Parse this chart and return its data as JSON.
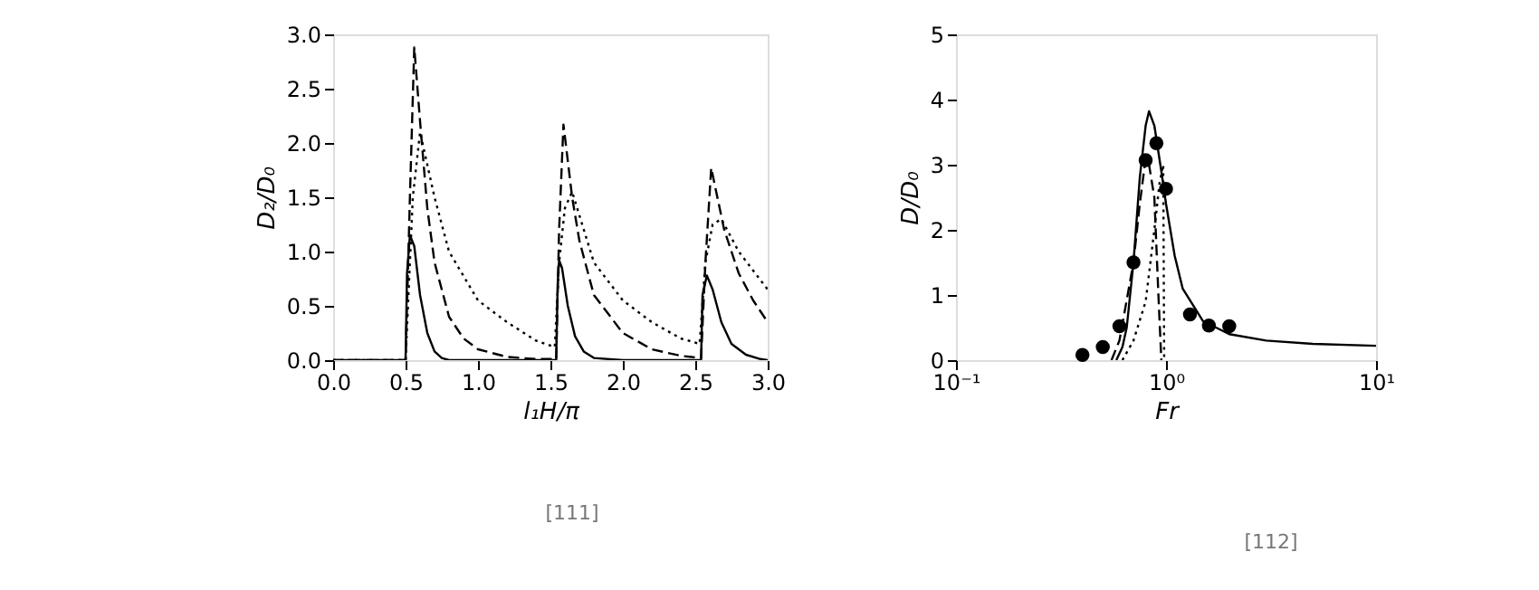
{
  "chart_data": [
    {
      "type": "line",
      "xlabel": "l₁H/π",
      "ylabel": "D₂/D₀",
      "xlim": [
        0,
        3
      ],
      "ylim": [
        0,
        3
      ],
      "xticks": [
        {
          "value": 0,
          "label": "0.0"
        },
        0.5,
        {
          "value": 1,
          "label": "1.0"
        },
        1.5,
        {
          "value": 2,
          "label": "2.0"
        },
        2.5,
        {
          "value": 3,
          "label": "3.0"
        }
      ],
      "yticks": [
        {
          "value": 0,
          "label": "0.0"
        },
        0.5,
        {
          "value": 1,
          "label": "1.0"
        },
        1.5,
        {
          "value": 2,
          "label": "2.0"
        },
        2.5,
        {
          "value": 3,
          "label": "3.0"
        }
      ],
      "grid": false,
      "legend": false,
      "annotations": [
        "[111]"
      ],
      "series": [
        {
          "color": "#000000",
          "line_style": "solid",
          "x": [
            0,
            0.5,
            0.51,
            0.53,
            0.56,
            0.6,
            0.65,
            0.7,
            0.75,
            0.8,
            1.0,
            1.3,
            1.54,
            1.55,
            1.56,
            1.58,
            1.62,
            1.67,
            1.73,
            1.8,
            2.0,
            2.3,
            2.54,
            2.55,
            2.58,
            2.62,
            2.68,
            2.75,
            2.85,
            2.95,
            3.0
          ],
          "values": [
            0,
            0,
            0.8,
            1.15,
            1.05,
            0.6,
            0.25,
            0.08,
            0.02,
            0,
            0,
            0,
            0,
            0.7,
            0.92,
            0.85,
            0.5,
            0.22,
            0.08,
            0.02,
            0,
            0,
            0,
            0.6,
            0.78,
            0.65,
            0.35,
            0.15,
            0.05,
            0.01,
            0
          ]
        },
        {
          "color": "#000000",
          "line_style": "dashed",
          "x": [
            0,
            0.5,
            0.53,
            0.56,
            0.6,
            0.65,
            0.7,
            0.8,
            0.9,
            1.0,
            1.2,
            1.4,
            1.54,
            1.56,
            1.59,
            1.65,
            1.7,
            1.8,
            2.0,
            2.2,
            2.4,
            2.54,
            2.57,
            2.61,
            2.7,
            2.8,
            2.9,
            3.0
          ],
          "values": [
            0,
            0,
            1.5,
            2.88,
            2.2,
            1.4,
            0.9,
            0.4,
            0.2,
            0.1,
            0.03,
            0.01,
            0.01,
            1.2,
            2.17,
            1.5,
            1.1,
            0.6,
            0.25,
            0.1,
            0.04,
            0.02,
            0.9,
            1.77,
            1.2,
            0.8,
            0.55,
            0.35
          ]
        },
        {
          "color": "#000000",
          "line_style": "dotted",
          "x": [
            0,
            0.5,
            0.55,
            0.6,
            0.7,
            0.8,
            1.0,
            1.2,
            1.4,
            1.53,
            1.56,
            1.6,
            1.65,
            1.8,
            2.0,
            2.2,
            2.4,
            2.53,
            2.57,
            2.62,
            2.68,
            2.8,
            3.0
          ],
          "values": [
            0,
            0,
            1.5,
            2.1,
            1.5,
            1.0,
            0.55,
            0.35,
            0.18,
            0.12,
            0.9,
            1.4,
            1.55,
            0.9,
            0.55,
            0.35,
            0.2,
            0.15,
            0.9,
            1.25,
            1.3,
            1.0,
            0.65
          ]
        }
      ]
    },
    {
      "type": "line",
      "xlabel": "Fr",
      "ylabel": "D/D₀",
      "log": "x",
      "xlim": [
        0.1,
        10
      ],
      "ylim": [
        0,
        5
      ],
      "xticks": [
        {
          "value": 0.1,
          "label": "10⁻¹"
        },
        {
          "value": 1,
          "label": "10⁰"
        },
        {
          "value": 10,
          "label": "10¹"
        }
      ],
      "yticks": [
        0,
        1,
        2,
        3,
        4,
        5
      ],
      "grid": false,
      "legend": false,
      "annotations": [
        "[112]"
      ],
      "series": [
        {
          "color": "#000000",
          "line_style": "solid",
          "x": [
            0.58,
            0.62,
            0.65,
            0.7,
            0.75,
            0.8,
            0.83,
            0.88,
            0.95,
            1.0,
            1.1,
            1.2,
            1.5,
            2,
            3,
            5,
            10
          ],
          "values": [
            0,
            0.2,
            0.5,
            1.5,
            2.8,
            3.6,
            3.82,
            3.6,
            2.9,
            2.4,
            1.6,
            1.1,
            0.6,
            0.4,
            0.3,
            0.25,
            0.22
          ]
        },
        {
          "color": "#000000",
          "line_style": "dashed",
          "x": [
            0.55,
            0.6,
            0.7,
            0.75,
            0.8,
            0.83,
            0.88,
            0.92,
            0.95
          ],
          "values": [
            0,
            0.3,
            1.5,
            2.4,
            3.1,
            3.0,
            2.5,
            1.0,
            0
          ]
        },
        {
          "color": "#000000",
          "line_style": "dotted",
          "x": [
            0.62,
            0.7,
            0.8,
            0.88,
            0.93,
            0.97,
            0.98
          ],
          "values": [
            0,
            0.3,
            0.9,
            2.0,
            2.7,
            3.0,
            0
          ]
        },
        {
          "type": "scatter",
          "marker": "circle",
          "color": "#000000",
          "x": [
            0.4,
            0.5,
            0.6,
            0.7,
            0.8,
            0.9,
            1.0,
            1.3,
            1.6,
            2.0
          ],
          "values": [
            0.08,
            0.2,
            0.52,
            1.5,
            3.07,
            3.33,
            2.63,
            0.7,
            0.53,
            0.52
          ]
        }
      ]
    }
  ]
}
